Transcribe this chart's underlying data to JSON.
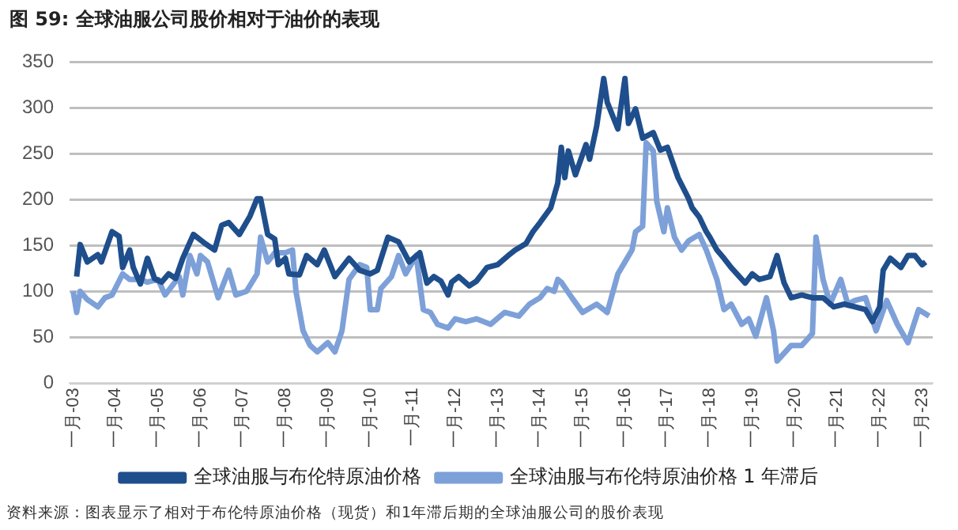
{
  "chart_data": {
    "type": "line",
    "title": "图 59:  全球油服公司股价相对于油价的表现",
    "annotations": [
      "资料来源：图表显示了相对于布伦特原油价格（现货）和1年滞后期的全球油服公司的股价表现"
    ],
    "xlim": [
      "2002-12",
      "2023-04"
    ],
    "xticks": [
      {
        "value": "2003-01",
        "label": "一月-03"
      },
      {
        "value": "2004-01",
        "label": "一月-04"
      },
      {
        "value": "2005-01",
        "label": "一月-05"
      },
      {
        "value": "2006-01",
        "label": "一月-06"
      },
      {
        "value": "2007-01",
        "label": "一月-07"
      },
      {
        "value": "2008-01",
        "label": "一月-08"
      },
      {
        "value": "2009-01",
        "label": "一月-09"
      },
      {
        "value": "2010-01",
        "label": "一月-10"
      },
      {
        "value": "2011-01",
        "label": "一月-11"
      },
      {
        "value": "2012-01",
        "label": "一月-12"
      },
      {
        "value": "2013-01",
        "label": "一月-13"
      },
      {
        "value": "2014-01",
        "label": "一月-14"
      },
      {
        "value": "2015-01",
        "label": "一月-15"
      },
      {
        "value": "2016-01",
        "label": "一月-16"
      },
      {
        "value": "2017-01",
        "label": "一月-17"
      },
      {
        "value": "2018-01",
        "label": "一月-18"
      },
      {
        "value": "2019-01",
        "label": "一月-19"
      },
      {
        "value": "2020-01",
        "label": "一月-20"
      },
      {
        "value": "2021-01",
        "label": "一月-21"
      },
      {
        "value": "2022-01",
        "label": "一月-22"
      },
      {
        "value": "2023-01",
        "label": "一月-23"
      }
    ],
    "ylim": [
      0,
      350
    ],
    "yticks": [
      0,
      50,
      100,
      150,
      200,
      250,
      300,
      350
    ],
    "grid": "y",
    "legend": "bottom",
    "line_style": "solid",
    "series": [
      {
        "name": "全球油服与布伦特原油价格",
        "color": "#1f4e8c",
        "x": [
          "2003-02",
          "2003-03",
          "2003-05",
          "2003-08",
          "2003-09",
          "2003-12",
          "2004-02",
          "2004-03",
          "2004-05",
          "2004-06",
          "2004-08",
          "2004-10",
          "2004-12",
          "2005-02",
          "2005-04",
          "2005-06",
          "2005-08",
          "2005-11",
          "2006-02",
          "2006-05",
          "2006-07",
          "2006-09",
          "2006-12",
          "2007-03",
          "2007-05",
          "2007-06",
          "2007-08",
          "2007-10",
          "2007-11",
          "2008-01",
          "2008-02",
          "2008-05",
          "2008-07",
          "2008-10",
          "2008-12",
          "2009-03",
          "2009-07",
          "2009-10",
          "2010-01",
          "2010-03",
          "2010-06",
          "2010-09",
          "2010-12",
          "2011-03",
          "2011-05",
          "2011-07",
          "2011-09",
          "2011-11",
          "2011-12",
          "2012-02",
          "2012-05",
          "2012-07",
          "2012-10",
          "2013-01",
          "2013-04",
          "2013-06",
          "2013-09",
          "2013-11",
          "2014-01",
          "2014-04",
          "2014-06",
          "2014-07",
          "2014-08",
          "2014-09",
          "2014-11",
          "2015-02",
          "2015-03",
          "2015-05",
          "2015-07",
          "2015-08",
          "2015-11",
          "2016-01",
          "2016-02",
          "2016-04",
          "2016-06",
          "2016-09",
          "2016-11",
          "2017-01",
          "2017-04",
          "2017-07",
          "2017-08",
          "2017-10",
          "2017-12",
          "2018-01",
          "2018-03",
          "2018-05",
          "2018-07",
          "2018-11",
          "2019-01",
          "2019-03",
          "2019-06",
          "2019-08",
          "2019-10",
          "2019-12",
          "2020-03",
          "2020-06",
          "2020-09",
          "2020-12",
          "2021-03",
          "2021-06",
          "2021-09",
          "2021-11",
          "2022-01",
          "2022-02",
          "2022-04",
          "2022-07",
          "2022-09",
          "2022-11",
          "2023-01",
          "2023-02"
        ],
        "values": [
          116,
          151,
          132,
          140,
          132,
          165,
          160,
          126,
          145,
          126,
          108,
          136,
          114,
          110,
          119,
          114,
          136,
          162,
          153,
          145,
          172,
          175,
          162,
          182,
          201,
          201,
          162,
          157,
          129,
          136,
          119,
          118,
          139,
          129,
          145,
          116,
          136,
          123,
          119,
          123,
          159,
          154,
          132,
          142,
          109,
          116,
          111,
          96,
          110,
          116,
          106,
          111,
          126,
          129,
          139,
          145,
          152,
          165,
          175,
          191,
          218,
          257,
          224,
          253,
          227,
          260,
          244,
          280,
          332,
          306,
          277,
          332,
          283,
          299,
          267,
          273,
          254,
          257,
          224,
          201,
          191,
          181,
          165,
          159,
          145,
          136,
          126,
          109,
          119,
          113,
          116,
          139,
          109,
          93,
          96,
          93,
          93,
          83,
          86,
          83,
          80,
          67,
          83,
          123,
          136,
          126,
          139,
          139,
          129,
          132
        ]
      },
      {
        "name": "全球油服与布伦特原油价格 1 年滞后",
        "color": "#7da0d8",
        "x": [
          "2003-01",
          "2003-02",
          "2003-03",
          "2003-05",
          "2003-08",
          "2003-10",
          "2003-12",
          "2004-03",
          "2004-05",
          "2004-08",
          "2004-10",
          "2005-01",
          "2005-03",
          "2005-07",
          "2005-08",
          "2005-10",
          "2005-12",
          "2006-01",
          "2006-03",
          "2006-06",
          "2006-09",
          "2006-11",
          "2007-02",
          "2007-05",
          "2007-06",
          "2007-08",
          "2007-10",
          "2008-01",
          "2008-03",
          "2008-04",
          "2008-06",
          "2008-08",
          "2008-10",
          "2009-01",
          "2009-03",
          "2009-05",
          "2009-07",
          "2009-10",
          "2009-12",
          "2010-01",
          "2010-03",
          "2010-04",
          "2010-07",
          "2010-09",
          "2010-11",
          "2011-02",
          "2011-04",
          "2011-06",
          "2011-08",
          "2011-11",
          "2012-01",
          "2012-04",
          "2012-07",
          "2012-11",
          "2013-03",
          "2013-07",
          "2013-10",
          "2014-01",
          "2014-03",
          "2014-05",
          "2014-06",
          "2014-07",
          "2014-10",
          "2015-01",
          "2015-05",
          "2015-08",
          "2015-11",
          "2016-01",
          "2016-03",
          "2016-04",
          "2016-06",
          "2016-07",
          "2016-09",
          "2016-10",
          "2016-12",
          "2017-01",
          "2017-03",
          "2017-05",
          "2017-07",
          "2017-10",
          "2017-12",
          "2018-03",
          "2018-05",
          "2018-07",
          "2018-10",
          "2018-12",
          "2019-02",
          "2019-05",
          "2019-07",
          "2019-08",
          "2019-12",
          "2020-03",
          "2020-06",
          "2020-07",
          "2020-09",
          "2020-11",
          "2021-02",
          "2021-04",
          "2021-06",
          "2021-09",
          "2021-12",
          "2022-03",
          "2022-06",
          "2022-09",
          "2022-12",
          "2023-03"
        ],
        "values": [
          100,
          77,
          100,
          91,
          83,
          93,
          96,
          119,
          113,
          113,
          110,
          113,
          96,
          116,
          96,
          139,
          119,
          139,
          132,
          93,
          123,
          96,
          100,
          119,
          159,
          132,
          142,
          142,
          145,
          100,
          57,
          41,
          34,
          44,
          34,
          57,
          113,
          129,
          126,
          80,
          80,
          103,
          116,
          139,
          119,
          139,
          80,
          77,
          64,
          60,
          70,
          67,
          70,
          64,
          77,
          73,
          86,
          93,
          103,
          100,
          113,
          110,
          93,
          77,
          86,
          77,
          119,
          132,
          145,
          165,
          171,
          262,
          253,
          198,
          165,
          191,
          159,
          145,
          155,
          162,
          145,
          113,
          80,
          86,
          64,
          70,
          51,
          93,
          57,
          24,
          41,
          41,
          54,
          159,
          113,
          86,
          113,
          86,
          90,
          93,
          57,
          90,
          64,
          44,
          80,
          73
        ]
      }
    ]
  }
}
